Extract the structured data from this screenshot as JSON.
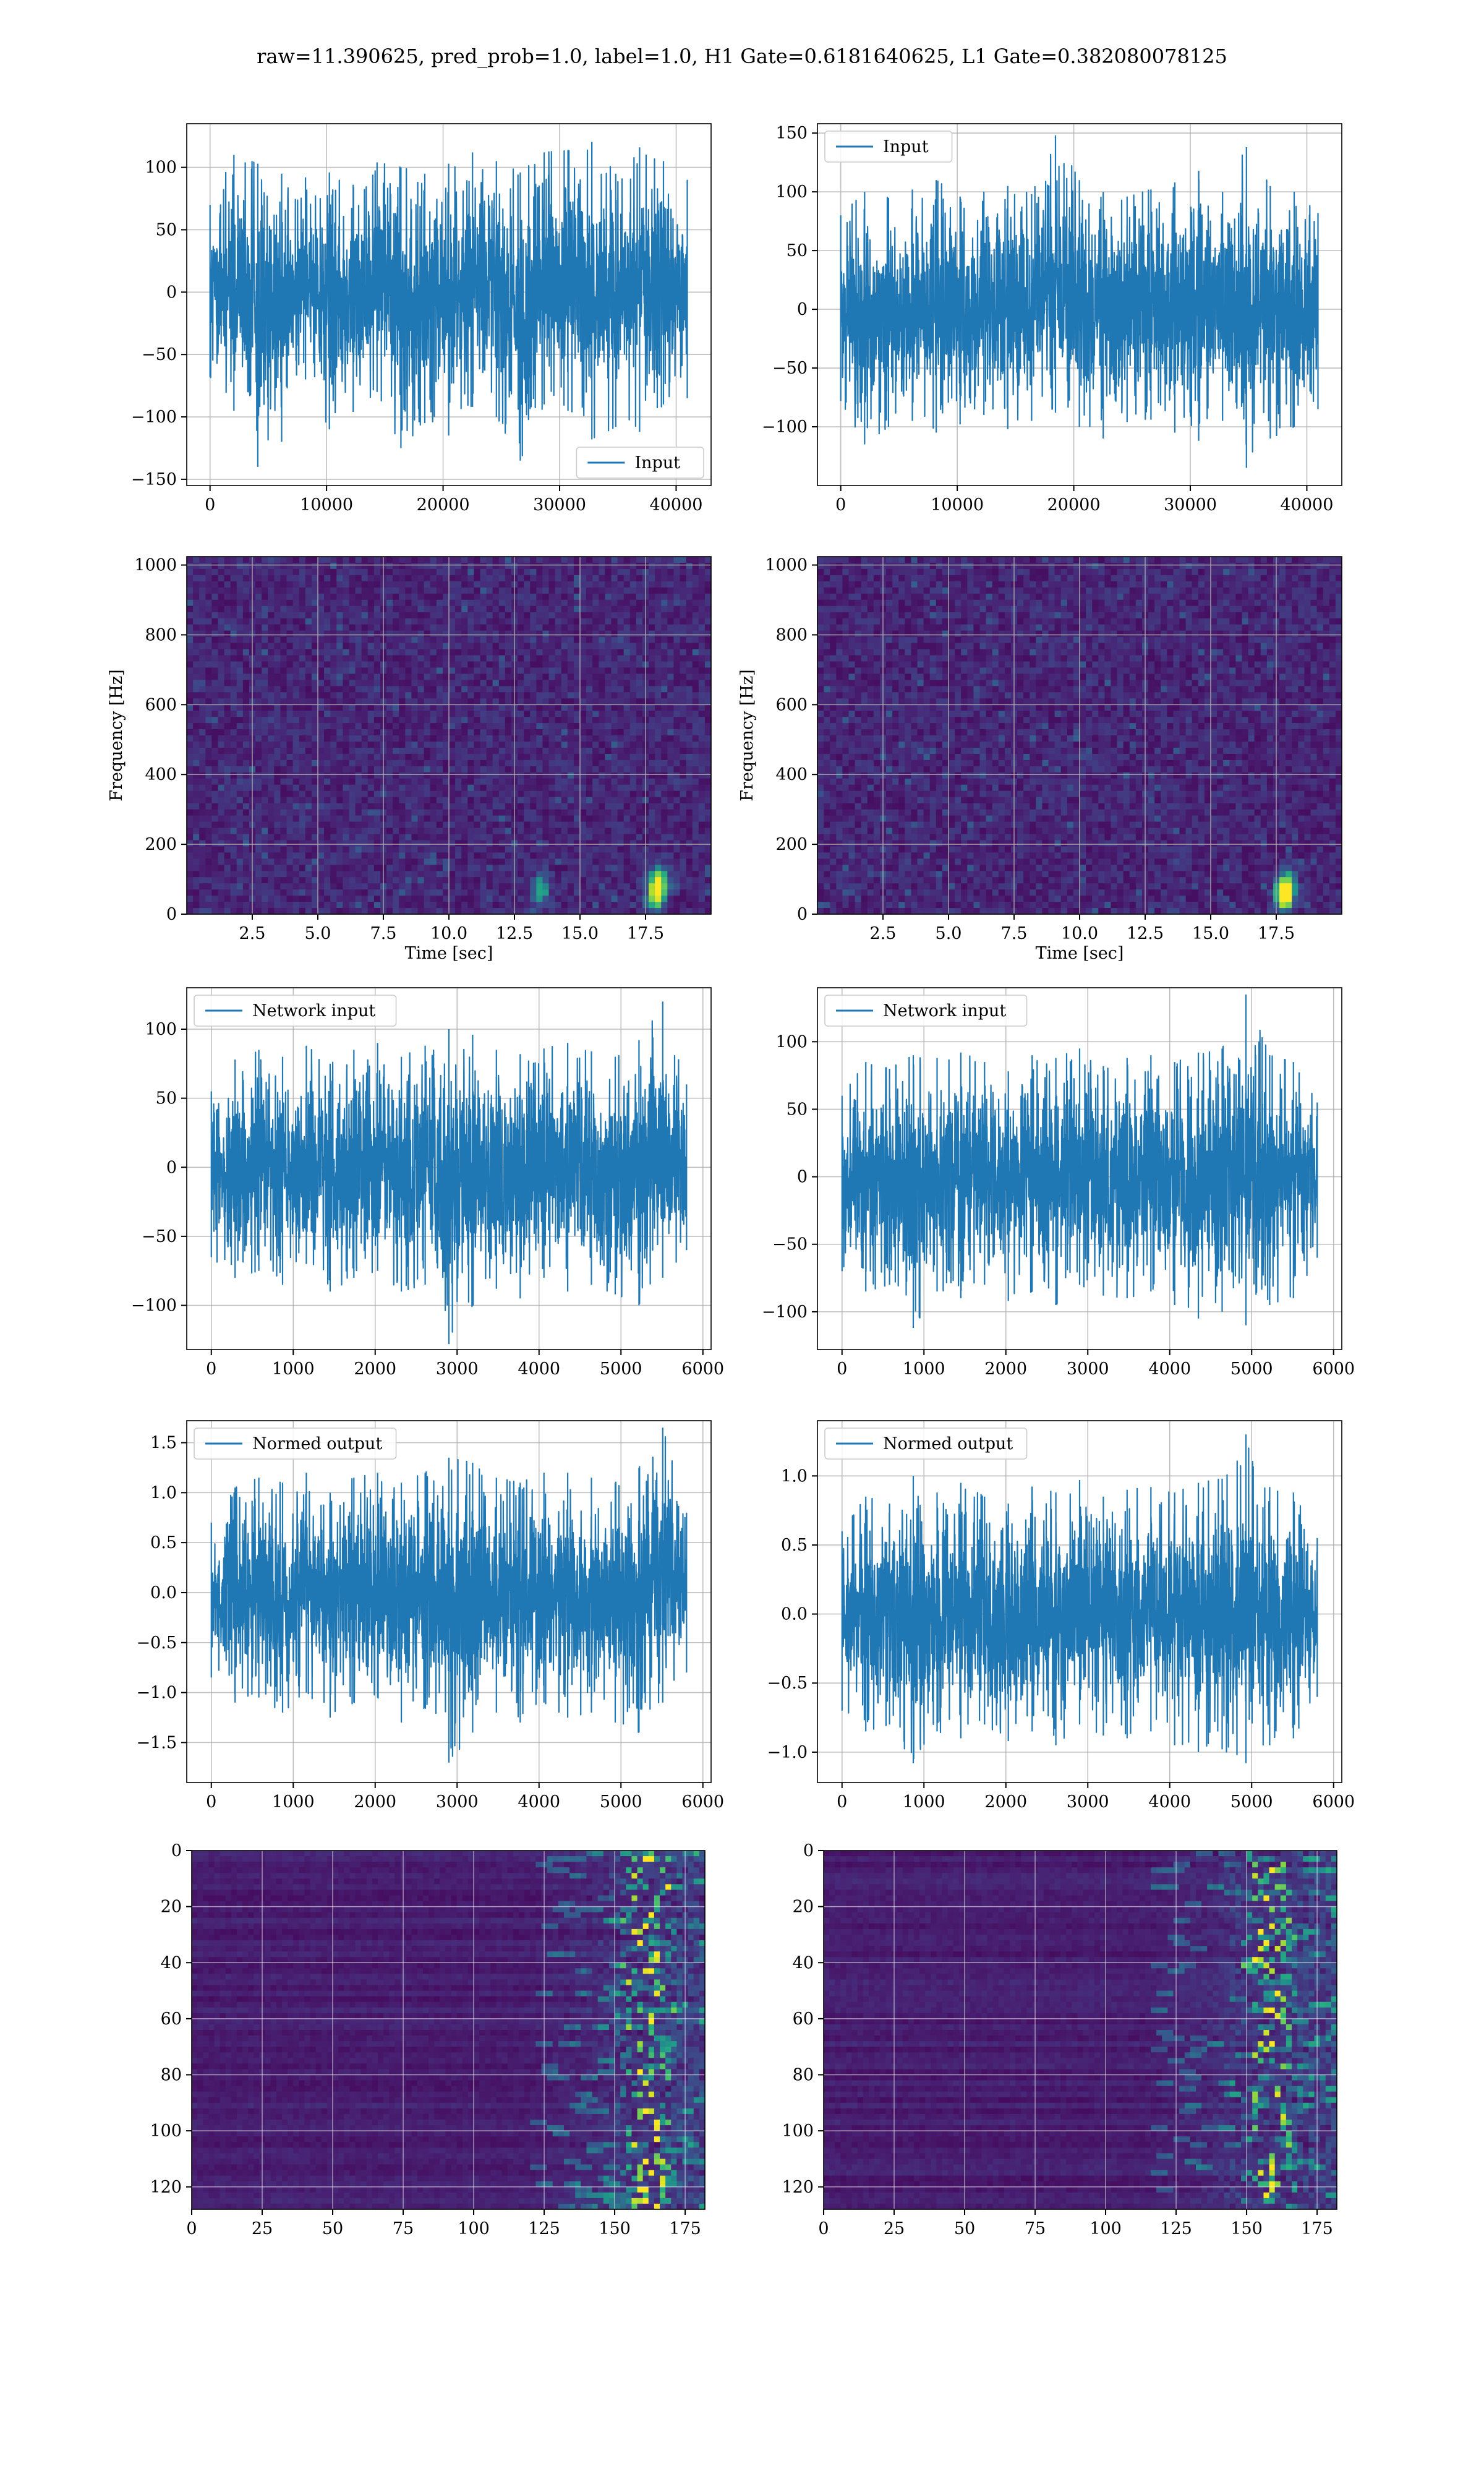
{
  "figure": {
    "suptitle": "raw=11.390625, pred_prob=1.0, label=1.0, H1 Gate=0.6181640625, L1 Gate=0.382080078125"
  },
  "colors": {
    "line": "#1f77b4",
    "grid": "#b0b0b0",
    "axes_frame": "#000000",
    "viridis_dark": "#440154",
    "viridis_mid": "#21918c",
    "viridis_bright": "#fde725"
  },
  "chart_data": [
    {
      "id": "h1-input-strain",
      "type": "line",
      "title": "",
      "xlabel": "",
      "ylabel": "",
      "xlim": [
        -2000,
        43000
      ],
      "ylim": [
        -155,
        135
      ],
      "xticks": [
        0,
        10000,
        20000,
        30000,
        40000
      ],
      "yticks": [
        -150,
        -100,
        -50,
        0,
        50,
        100
      ],
      "grid": true,
      "legend": {
        "position": "lower-right",
        "entries": [
          "Input"
        ]
      },
      "series": [
        {
          "name": "Input",
          "color": "#1f77b4",
          "description_of_shape": "dense Gaussian-like noise",
          "x_range": [
            0,
            40959
          ],
          "envelope_min": [
            -68,
            -95,
            -140,
            -120,
            -70,
            -110,
            -96,
            -80,
            -125,
            -105,
            -115,
            -92,
            -100,
            -135,
            -90,
            -95,
            -118,
            -108,
            -112,
            -90,
            -85
          ],
          "envelope_max": [
            70,
            110,
            103,
            95,
            92,
            96,
            86,
            104,
            100,
            95,
            103,
            112,
            105,
            96,
            112,
            114,
            120,
            95,
            116,
            105,
            90
          ],
          "envelope_x": [
            0,
            2048,
            4096,
            6144,
            8192,
            10240,
            12288,
            14336,
            16384,
            18432,
            20480,
            22528,
            24576,
            26624,
            28672,
            30720,
            32768,
            34816,
            36864,
            38912,
            40959
          ]
        }
      ]
    },
    {
      "id": "l1-input-strain",
      "type": "line",
      "title": "",
      "xlabel": "",
      "ylabel": "",
      "xlim": [
        -2000,
        43000
      ],
      "ylim": [
        -150,
        158
      ],
      "xticks": [
        0,
        10000,
        20000,
        30000,
        40000
      ],
      "yticks": [
        -100,
        -50,
        0,
        50,
        100,
        150
      ],
      "grid": true,
      "legend": {
        "position": "top-left",
        "entries": [
          "Input"
        ]
      },
      "series": [
        {
          "name": "Input",
          "color": "#1f77b4",
          "x_range": [
            0,
            40959
          ],
          "envelope_x": [
            0,
            2048,
            4096,
            6144,
            8192,
            10240,
            12288,
            14336,
            16384,
            18432,
            20480,
            22528,
            24576,
            26624,
            28672,
            30720,
            32768,
            34816,
            36864,
            38912,
            40959
          ],
          "envelope_min": [
            -78,
            -115,
            -100,
            -95,
            -105,
            -98,
            -90,
            -102,
            -95,
            -88,
            -100,
            -110,
            -96,
            -94,
            -105,
            -112,
            -95,
            -135,
            -110,
            -100,
            -85
          ],
          "envelope_max": [
            80,
            100,
            95,
            102,
            110,
            96,
            100,
            105,
            98,
            148,
            110,
            100,
            96,
            102,
            108,
            118,
            100,
            138,
            105,
            100,
            82
          ]
        }
      ]
    },
    {
      "id": "h1-spectrogram",
      "type": "heatmap",
      "title": "",
      "xlabel": "Time [sec]",
      "ylabel": "Frequency [Hz]",
      "xlim": [
        0,
        20
      ],
      "ylim": [
        0,
        1024
      ],
      "xticks": [
        2.5,
        5.0,
        7.5,
        10.0,
        12.5,
        15.0,
        17.5
      ],
      "yticks": [
        0,
        200,
        400,
        600,
        800,
        1000
      ],
      "grid": true,
      "colormap": "viridis",
      "bright_features": [
        {
          "time": 13.5,
          "frequency": 70,
          "strength": 0.45
        },
        {
          "time": 17.9,
          "frequency": 55,
          "strength": 0.75
        },
        {
          "time": 18.0,
          "frequency": 100,
          "strength": 0.55
        }
      ]
    },
    {
      "id": "l1-spectrogram",
      "type": "heatmap",
      "title": "",
      "xlabel": "Time [sec]",
      "ylabel": "Frequency [Hz]",
      "xlim": [
        0,
        20
      ],
      "ylim": [
        0,
        1024
      ],
      "xticks": [
        2.5,
        5.0,
        7.5,
        10.0,
        12.5,
        15.0,
        17.5
      ],
      "yticks": [
        0,
        200,
        400,
        600,
        800,
        1000
      ],
      "grid": true,
      "colormap": "viridis",
      "bright_features": [
        {
          "time": 17.8,
          "frequency": 50,
          "strength": 0.8
        },
        {
          "time": 17.9,
          "frequency": 85,
          "strength": 0.5
        }
      ]
    },
    {
      "id": "h1-network-input",
      "type": "line",
      "title": "",
      "xlabel": "",
      "ylabel": "",
      "xlim": [
        -300,
        6100
      ],
      "ylim": [
        -132,
        130
      ],
      "xticks": [
        0,
        1000,
        2000,
        3000,
        4000,
        5000,
        6000
      ],
      "yticks": [
        -100,
        -50,
        0,
        50,
        100
      ],
      "grid": true,
      "legend": {
        "position": "top-left",
        "entries": [
          "Network input"
        ]
      },
      "series": [
        {
          "name": "Network input",
          "color": "#1f77b4",
          "x_range": [
            0,
            5800
          ],
          "envelope_x": [
            0,
            290,
            580,
            870,
            1160,
            1450,
            1740,
            2030,
            2320,
            2610,
            2900,
            3190,
            3480,
            3770,
            4060,
            4350,
            4640,
            4930,
            5220,
            5510,
            5800
          ],
          "envelope_min": [
            -65,
            -80,
            -75,
            -85,
            -70,
            -90,
            -80,
            -75,
            -90,
            -85,
            -128,
            -100,
            -88,
            -95,
            -80,
            -90,
            -85,
            -92,
            -100,
            -80,
            -60
          ],
          "envelope_max": [
            55,
            78,
            85,
            80,
            88,
            75,
            85,
            90,
            80,
            88,
            100,
            96,
            85,
            82,
            86,
            90,
            84,
            80,
            92,
            120,
            60
          ]
        }
      ]
    },
    {
      "id": "l1-network-input",
      "type": "line",
      "title": "",
      "xlabel": "",
      "ylabel": "",
      "xlim": [
        -300,
        6100
      ],
      "ylim": [
        -128,
        140
      ],
      "xticks": [
        0,
        1000,
        2000,
        3000,
        4000,
        5000,
        6000
      ],
      "yticks": [
        -100,
        -50,
        0,
        50,
        100
      ],
      "grid": true,
      "legend": {
        "position": "top-left",
        "entries": [
          "Network input"
        ]
      },
      "series": [
        {
          "name": "Network input",
          "color": "#1f77b4",
          "x_range": [
            0,
            5800
          ],
          "envelope_x": [
            0,
            290,
            580,
            870,
            1160,
            1450,
            1740,
            2030,
            2320,
            2610,
            2900,
            3190,
            3480,
            3770,
            4060,
            4350,
            4640,
            4930,
            5220,
            5510,
            5800
          ],
          "envelope_min": [
            -70,
            -85,
            -80,
            -112,
            -85,
            -90,
            -80,
            -92,
            -85,
            -95,
            -80,
            -88,
            -90,
            -85,
            -95,
            -105,
            -100,
            -110,
            -95,
            -90,
            -60
          ],
          "envelope_max": [
            60,
            85,
            80,
            90,
            88,
            92,
            85,
            78,
            90,
            88,
            95,
            82,
            88,
            90,
            85,
            92,
            95,
            135,
            90,
            85,
            55
          ]
        }
      ]
    },
    {
      "id": "h1-normed-output",
      "type": "line",
      "title": "",
      "xlabel": "",
      "ylabel": "",
      "xlim": [
        -300,
        6100
      ],
      "ylim": [
        -1.9,
        1.72
      ],
      "xticks": [
        0,
        1000,
        2000,
        3000,
        4000,
        5000,
        6000
      ],
      "yticks": [
        -1.5,
        -1.0,
        -0.5,
        0.0,
        0.5,
        1.0,
        1.5
      ],
      "grid": true,
      "legend": {
        "position": "top-left",
        "entries": [
          "Normed output"
        ]
      },
      "series": [
        {
          "name": "Normed output",
          "color": "#1f77b4",
          "x_range": [
            0,
            5800
          ],
          "envelope_x": [
            0,
            290,
            580,
            870,
            1160,
            1450,
            1740,
            2030,
            2320,
            2610,
            2900,
            3190,
            3480,
            3770,
            4060,
            4350,
            4640,
            4930,
            5220,
            5510,
            5800
          ],
          "envelope_min": [
            -0.85,
            -1.1,
            -1.05,
            -1.2,
            -1.0,
            -1.25,
            -1.1,
            -1.05,
            -1.3,
            -1.15,
            -1.7,
            -1.4,
            -1.2,
            -1.3,
            -1.1,
            -1.25,
            -1.2,
            -1.3,
            -1.4,
            -1.1,
            -0.8
          ],
          "envelope_max": [
            0.7,
            1.05,
            1.15,
            1.1,
            1.2,
            1.0,
            1.15,
            1.2,
            1.1,
            1.2,
            1.35,
            1.3,
            1.15,
            1.1,
            1.2,
            1.2,
            1.15,
            1.1,
            1.25,
            1.65,
            0.8
          ]
        }
      ]
    },
    {
      "id": "l1-normed-output",
      "type": "line",
      "title": "",
      "xlabel": "",
      "ylabel": "",
      "xlim": [
        -300,
        6100
      ],
      "ylim": [
        -1.22,
        1.4
      ],
      "xticks": [
        0,
        1000,
        2000,
        3000,
        4000,
        5000,
        6000
      ],
      "yticks": [
        -1.0,
        -0.5,
        0.0,
        0.5,
        1.0
      ],
      "grid": true,
      "legend": {
        "position": "top-left",
        "entries": [
          "Normed output"
        ]
      },
      "series": [
        {
          "name": "Normed output",
          "color": "#1f77b4",
          "x_range": [
            0,
            5800
          ],
          "envelope_x": [
            0,
            290,
            580,
            870,
            1160,
            1450,
            1740,
            2030,
            2320,
            2610,
            2900,
            3190,
            3480,
            3770,
            4060,
            4350,
            4640,
            4930,
            5220,
            5510,
            5800
          ],
          "envelope_min": [
            -0.7,
            -0.85,
            -0.8,
            -1.08,
            -0.85,
            -0.9,
            -0.8,
            -0.92,
            -0.85,
            -0.95,
            -0.8,
            -0.88,
            -0.9,
            -0.85,
            -0.95,
            -1.0,
            -0.98,
            -1.08,
            -0.95,
            -0.9,
            -0.6
          ],
          "envelope_max": [
            0.6,
            0.85,
            0.8,
            1.0,
            0.88,
            0.95,
            0.85,
            0.8,
            0.92,
            0.88,
            0.97,
            0.85,
            0.9,
            0.92,
            0.88,
            0.95,
            0.98,
            1.3,
            0.92,
            0.88,
            0.55
          ]
        }
      ]
    },
    {
      "id": "h1-feature-map",
      "type": "heatmap",
      "title": "",
      "xlabel": "",
      "ylabel": "",
      "xlim": [
        0,
        182
      ],
      "ylim": [
        128,
        0
      ],
      "xticks": [
        0,
        25,
        50,
        75,
        100,
        125,
        150,
        175
      ],
      "yticks": [
        0,
        20,
        40,
        60,
        80,
        100,
        120
      ],
      "grid": true,
      "colormap": "viridis",
      "rows": 128,
      "cols": 182,
      "bright_region": {
        "col_start": 120,
        "col_end": 182,
        "peak_col": 162,
        "description": "activation concentrated in columns ~145-175"
      }
    },
    {
      "id": "l1-feature-map",
      "type": "heatmap",
      "title": "",
      "xlabel": "",
      "ylabel": "",
      "xlim": [
        0,
        182
      ],
      "ylim": [
        128,
        0
      ],
      "xticks": [
        0,
        25,
        50,
        75,
        100,
        125,
        150,
        175
      ],
      "yticks": [
        0,
        20,
        40,
        60,
        80,
        100,
        120
      ],
      "grid": true,
      "colormap": "viridis",
      "rows": 128,
      "cols": 182,
      "bright_region": {
        "col_start": 115,
        "col_end": 182,
        "peak_col": 158,
        "description": "activation concentrated in columns ~140-170"
      }
    }
  ]
}
